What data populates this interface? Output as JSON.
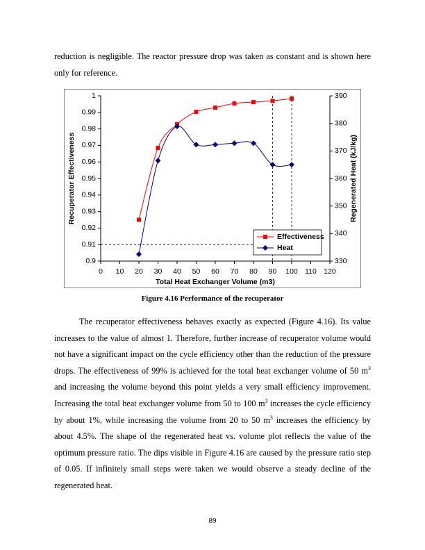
{
  "paragraph_1": "reduction is negligible.  The reactor pressure drop was taken as constant and is shown here only for reference.",
  "figure_caption": "Figure 4.16 Performance of the recuperator",
  "paragraph_2": [
    "The recuperator effectiveness behaves exactly as expected (Figure 4.16).  Its value increases to the value of almost 1.  Therefore, further increase of recuperator volume would not have a significant impact on the cycle efficiency other than the reduction of the pressure drops.  The effectiveness of 99% is achieved for the total heat exchanger volume of 50 m",
    "3",
    " and increasing the volume beyond this point yields a very small efficiency improvement.  Increasing the total heat exchanger volume from 50 to 100 m",
    "3",
    " increases the cycle efficiency by about 1%, while increasing the volume from 20 to 50 m",
    "3",
    " increases the efficiency by about 4.5%.  The shape of the regenerated heat vs. volume plot reflects the value of the optimum pressure ratio.  The dips visible in Figure 4.16 are caused by the pressure ratio step of 0.05.  If infinitely small steps were taken we would observe a steady decline of the regenerated heat."
  ],
  "page_number": "89",
  "chart_data": {
    "type": "line",
    "x_label": "Total Heat Exchanger Volume (m3)",
    "y_label": "Recuperator Effectiveness",
    "y2_label": "Regenerated Heat (kJ/kg)",
    "x": [
      20,
      30,
      40,
      50,
      60,
      70,
      80,
      90,
      100
    ],
    "series": [
      {
        "name": "Effectiveness",
        "color": "#ff0000",
        "marker": "square",
        "values": [
          0.925,
          0.9685,
          0.9828,
          0.9903,
          0.9929,
          0.9954,
          0.9962,
          0.997,
          0.9983
        ]
      },
      {
        "name": "Heat",
        "color": "#000080",
        "marker": "diamond",
        "axis": "y2",
        "values": [
          332.5,
          366.5,
          378.9,
          372.3,
          372.3,
          372.8,
          372.8,
          365,
          365
        ]
      }
    ],
    "xlim": [
      0,
      120
    ],
    "xticks": [
      0,
      10,
      20,
      30,
      40,
      50,
      60,
      70,
      80,
      90,
      100,
      110,
      120
    ],
    "ylim": [
      0.9,
      1
    ],
    "yticks": [
      0.9,
      0.91,
      0.92,
      0.93,
      0.94,
      0.95,
      0.96,
      0.97,
      0.98,
      0.99,
      1
    ],
    "y2lim": [
      330,
      390
    ],
    "y2ticks": [
      330,
      340,
      350,
      360,
      370,
      380,
      390
    ],
    "reference_x": [
      90,
      100
    ],
    "reference_y": 0.91,
    "smooth": true,
    "legend": "lower right"
  }
}
